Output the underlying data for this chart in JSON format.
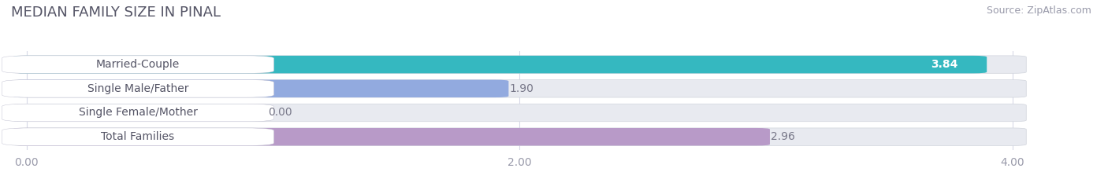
{
  "title": "MEDIAN FAMILY SIZE IN PINAL",
  "source": "Source: ZipAtlas.com",
  "categories": [
    "Married-Couple",
    "Single Male/Father",
    "Single Female/Mother",
    "Total Families"
  ],
  "values": [
    3.84,
    1.9,
    0.0,
    2.96
  ],
  "bar_colors": [
    "#35b8c0",
    "#92aadf",
    "#f4a8b8",
    "#b89ac8"
  ],
  "bar_bg_color": "#e8eaf0",
  "xlim_data": [
    0,
    4.0
  ],
  "xticks": [
    0.0,
    2.0,
    4.0
  ],
  "xtick_labels": [
    "0.00",
    "2.00",
    "4.00"
  ],
  "title_fontsize": 13,
  "source_fontsize": 9,
  "tick_fontsize": 10,
  "bar_label_fontsize": 10,
  "category_fontsize": 10,
  "bg_color": "#ffffff"
}
